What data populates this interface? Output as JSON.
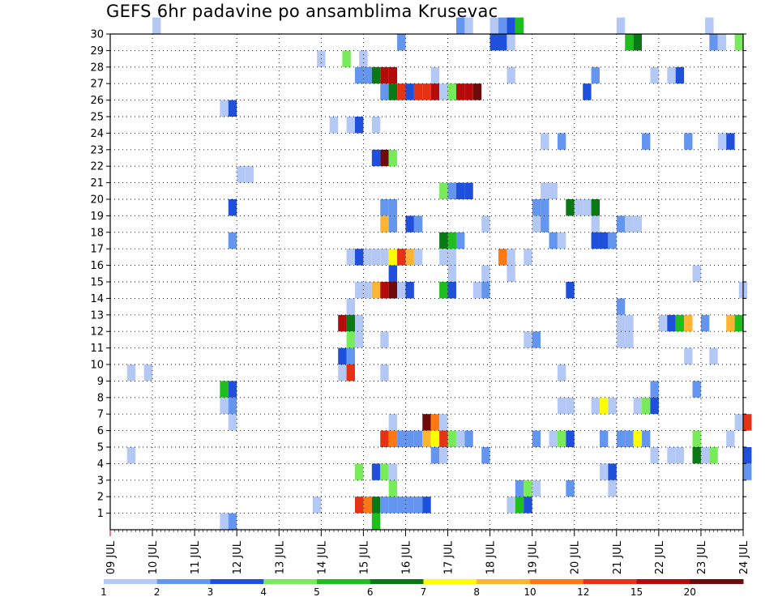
{
  "chart_data": {
    "type": "heatmap",
    "title": "GEFS 6hr padavine po ansamblima Krusevac",
    "xlabel": "",
    "ylabel": "",
    "x_ticks": [
      "09 JUL",
      "10 JUL",
      "11 JUL",
      "12 JUL",
      "13 JUL",
      "14 JUL",
      "15 JUL",
      "16 JUL",
      "17 JUL",
      "18 JUL",
      "19 JUL",
      "20 JUL",
      "21 JUL",
      "22 JUL",
      "23 JUL",
      "24 JUL"
    ],
    "y_ticks": [
      "1",
      "2",
      "3",
      "4",
      "5",
      "6",
      "7",
      "8",
      "9",
      "10",
      "11",
      "12",
      "13",
      "14",
      "15",
      "16",
      "17",
      "18",
      "19",
      "20",
      "21",
      "22",
      "23",
      "24",
      "25",
      "26",
      "27",
      "28",
      "29",
      "30"
    ],
    "grid": true,
    "grid_style": "dotted",
    "colorbar": {
      "position": "bottom",
      "labels": [
        "1",
        "2",
        "3",
        "4",
        "5",
        "6",
        "7",
        "8",
        "10",
        "12",
        "15",
        "20"
      ],
      "colors": [
        "#b4c8f5",
        "#6496f0",
        "#1e50dc",
        "#78eb5a",
        "#1ebe1e",
        "#0a7814",
        "#ffff00",
        "#ffb432",
        "#ff7814",
        "#e63214",
        "#b40a0a",
        "#6e0a0a"
      ]
    },
    "color_scale": [
      "#b4c8f5",
      "#6496f0",
      "#1e50dc",
      "#78eb5a",
      "#1ebe1e",
      "#0a7814",
      "#ffff00",
      "#ffb432",
      "#ff7814",
      "#e63214",
      "#b40a0a",
      "#6e0a0a"
    ],
    "cells_note": "each cell: [time step (6h steps from 09 JUL 00UTC), ensemble member, precipitation class index 0-11]",
    "cells": [
      [
        10,
        30,
        0
      ],
      [
        82,
        30,
        1
      ],
      [
        84,
        30,
        0
      ],
      [
        90,
        30,
        0
      ],
      [
        92,
        30,
        1
      ],
      [
        94,
        30,
        2
      ],
      [
        96,
        30,
        4
      ],
      [
        120,
        30,
        0
      ],
      [
        141,
        30,
        0
      ],
      [
        68,
        29,
        1
      ],
      [
        90,
        29,
        2
      ],
      [
        92,
        29,
        2
      ],
      [
        94,
        29,
        0
      ],
      [
        122,
        29,
        4
      ],
      [
        124,
        29,
        5
      ],
      [
        142,
        29,
        1
      ],
      [
        144,
        29,
        0
      ],
      [
        148,
        29,
        3
      ],
      [
        49,
        28,
        0
      ],
      [
        55,
        28,
        3
      ],
      [
        59,
        28,
        0
      ],
      [
        58,
        27,
        1
      ],
      [
        60,
        27,
        1
      ],
      [
        62,
        27,
        5
      ],
      [
        64,
        27,
        10
      ],
      [
        66,
        27,
        10
      ],
      [
        76,
        27,
        0
      ],
      [
        94,
        27,
        0
      ],
      [
        114,
        27,
        1
      ],
      [
        128,
        27,
        0
      ],
      [
        132,
        27,
        0
      ],
      [
        134,
        27,
        2
      ],
      [
        64,
        26,
        1
      ],
      [
        66,
        26,
        5
      ],
      [
        68,
        26,
        9
      ],
      [
        70,
        26,
        2
      ],
      [
        72,
        26,
        9
      ],
      [
        74,
        26,
        9
      ],
      [
        76,
        26,
        10
      ],
      [
        78,
        26,
        0
      ],
      [
        80,
        26,
        3
      ],
      [
        82,
        26,
        10
      ],
      [
        84,
        26,
        10
      ],
      [
        86,
        26,
        11
      ],
      [
        112,
        26,
        2
      ],
      [
        26,
        25,
        0
      ],
      [
        28,
        25,
        2
      ],
      [
        52,
        24,
        0
      ],
      [
        56,
        24,
        0
      ],
      [
        58,
        24,
        2
      ],
      [
        62,
        24,
        0
      ],
      [
        102,
        23,
        0
      ],
      [
        106,
        23,
        1
      ],
      [
        126,
        23,
        1
      ],
      [
        136,
        23,
        1
      ],
      [
        144,
        23,
        0
      ],
      [
        146,
        23,
        2
      ],
      [
        62,
        22,
        2
      ],
      [
        64,
        22,
        11
      ],
      [
        66,
        22,
        3
      ],
      [
        30,
        21,
        0
      ],
      [
        32,
        21,
        0
      ],
      [
        78,
        20,
        3
      ],
      [
        80,
        20,
        1
      ],
      [
        82,
        20,
        2
      ],
      [
        84,
        20,
        2
      ],
      [
        102,
        20,
        0
      ],
      [
        104,
        20,
        0
      ],
      [
        28,
        19,
        2
      ],
      [
        64,
        19,
        1
      ],
      [
        66,
        19,
        1
      ],
      [
        100,
        19,
        1
      ],
      [
        102,
        19,
        1
      ],
      [
        108,
        19,
        5
      ],
      [
        110,
        19,
        0
      ],
      [
        112,
        19,
        0
      ],
      [
        114,
        19,
        5
      ],
      [
        64,
        18,
        7
      ],
      [
        66,
        18,
        1
      ],
      [
        70,
        18,
        2
      ],
      [
        72,
        18,
        1
      ],
      [
        88,
        18,
        0
      ],
      [
        100,
        18,
        0
      ],
      [
        102,
        18,
        1
      ],
      [
        114,
        18,
        0
      ],
      [
        120,
        18,
        1
      ],
      [
        122,
        18,
        0
      ],
      [
        124,
        18,
        0
      ],
      [
        28,
        17,
        1
      ],
      [
        78,
        17,
        5
      ],
      [
        80,
        17,
        4
      ],
      [
        82,
        17,
        1
      ],
      [
        104,
        17,
        1
      ],
      [
        106,
        17,
        0
      ],
      [
        114,
        17,
        2
      ],
      [
        116,
        17,
        2
      ],
      [
        118,
        17,
        1
      ],
      [
        56,
        16,
        0
      ],
      [
        58,
        16,
        2
      ],
      [
        60,
        16,
        0
      ],
      [
        62,
        16,
        0
      ],
      [
        64,
        16,
        0
      ],
      [
        66,
        16,
        6
      ],
      [
        68,
        16,
        9
      ],
      [
        70,
        16,
        7
      ],
      [
        72,
        16,
        0
      ],
      [
        78,
        16,
        0
      ],
      [
        80,
        16,
        0
      ],
      [
        92,
        16,
        8
      ],
      [
        94,
        16,
        0
      ],
      [
        98,
        16,
        0
      ],
      [
        66,
        15,
        2
      ],
      [
        80,
        15,
        0
      ],
      [
        88,
        15,
        0
      ],
      [
        94,
        15,
        0
      ],
      [
        138,
        15,
        0
      ],
      [
        58,
        14,
        0
      ],
      [
        60,
        14,
        0
      ],
      [
        62,
        14,
        7
      ],
      [
        64,
        14,
        10
      ],
      [
        66,
        14,
        11
      ],
      [
        68,
        14,
        0
      ],
      [
        70,
        14,
        2
      ],
      [
        78,
        14,
        4
      ],
      [
        80,
        14,
        2
      ],
      [
        86,
        14,
        0
      ],
      [
        88,
        14,
        1
      ],
      [
        108,
        14,
        2
      ],
      [
        149,
        14,
        0
      ],
      [
        56,
        13,
        0
      ],
      [
        120,
        13,
        1
      ],
      [
        54,
        12,
        10
      ],
      [
        56,
        12,
        5
      ],
      [
        58,
        12,
        0
      ],
      [
        120,
        12,
        0
      ],
      [
        122,
        12,
        0
      ],
      [
        130,
        12,
        0
      ],
      [
        132,
        12,
        2
      ],
      [
        134,
        12,
        4
      ],
      [
        136,
        12,
        7
      ],
      [
        140,
        12,
        1
      ],
      [
        146,
        12,
        7
      ],
      [
        148,
        12,
        4
      ],
      [
        56,
        11,
        3
      ],
      [
        58,
        11,
        0
      ],
      [
        64,
        11,
        0
      ],
      [
        98,
        11,
        0
      ],
      [
        100,
        11,
        1
      ],
      [
        120,
        11,
        0
      ],
      [
        122,
        11,
        0
      ],
      [
        54,
        10,
        2
      ],
      [
        56,
        10,
        1
      ],
      [
        136,
        10,
        0
      ],
      [
        142,
        10,
        0
      ],
      [
        4,
        9,
        0
      ],
      [
        8,
        9,
        0
      ],
      [
        54,
        9,
        0
      ],
      [
        56,
        9,
        9
      ],
      [
        64,
        9,
        0
      ],
      [
        106,
        9,
        0
      ],
      [
        26,
        8,
        4
      ],
      [
        28,
        8,
        2
      ],
      [
        128,
        8,
        1
      ],
      [
        138,
        8,
        1
      ],
      [
        26,
        7,
        0
      ],
      [
        28,
        7,
        1
      ],
      [
        106,
        7,
        0
      ],
      [
        108,
        7,
        0
      ],
      [
        114,
        7,
        0
      ],
      [
        116,
        7,
        6
      ],
      [
        118,
        7,
        0
      ],
      [
        124,
        7,
        0
      ],
      [
        126,
        7,
        3
      ],
      [
        128,
        7,
        2
      ],
      [
        28,
        6,
        0
      ],
      [
        66,
        6,
        0
      ],
      [
        74,
        6,
        11
      ],
      [
        76,
        6,
        8
      ],
      [
        78,
        6,
        0
      ],
      [
        148,
        6,
        0
      ],
      [
        150,
        6,
        9
      ],
      [
        64,
        5,
        9
      ],
      [
        66,
        5,
        8
      ],
      [
        68,
        5,
        1
      ],
      [
        70,
        5,
        1
      ],
      [
        72,
        5,
        1
      ],
      [
        74,
        5,
        7
      ],
      [
        76,
        5,
        6
      ],
      [
        78,
        5,
        9
      ],
      [
        80,
        5,
        3
      ],
      [
        82,
        5,
        0
      ],
      [
        84,
        5,
        1
      ],
      [
        100,
        5,
        1
      ],
      [
        104,
        5,
        0
      ],
      [
        106,
        5,
        3
      ],
      [
        108,
        5,
        2
      ],
      [
        116,
        5,
        1
      ],
      [
        120,
        5,
        1
      ],
      [
        122,
        5,
        1
      ],
      [
        124,
        5,
        6
      ],
      [
        126,
        5,
        1
      ],
      [
        138,
        5,
        3
      ],
      [
        146,
        5,
        0
      ],
      [
        4,
        4,
        0
      ],
      [
        76,
        4,
        1
      ],
      [
        78,
        4,
        0
      ],
      [
        88,
        4,
        1
      ],
      [
        128,
        4,
        0
      ],
      [
        132,
        4,
        0
      ],
      [
        134,
        4,
        0
      ],
      [
        138,
        4,
        5
      ],
      [
        140,
        4,
        0
      ],
      [
        142,
        4,
        3
      ],
      [
        150,
        4,
        2
      ],
      [
        58,
        3,
        3
      ],
      [
        62,
        3,
        2
      ],
      [
        64,
        3,
        3
      ],
      [
        66,
        3,
        0
      ],
      [
        116,
        3,
        0
      ],
      [
        118,
        3,
        2
      ],
      [
        150,
        3,
        1
      ],
      [
        66,
        2,
        3
      ],
      [
        96,
        2,
        1
      ],
      [
        98,
        2,
        3
      ],
      [
        100,
        2,
        0
      ],
      [
        108,
        2,
        1
      ],
      [
        118,
        2,
        0
      ],
      [
        48,
        1,
        0
      ],
      [
        58,
        1,
        9
      ],
      [
        60,
        1,
        8
      ],
      [
        62,
        1,
        5
      ],
      [
        64,
        1,
        1
      ],
      [
        66,
        1,
        1
      ],
      [
        68,
        1,
        1
      ],
      [
        70,
        1,
        1
      ],
      [
        72,
        1,
        1
      ],
      [
        74,
        1,
        2
      ],
      [
        94,
        1,
        0
      ],
      [
        96,
        1,
        4
      ],
      [
        98,
        1,
        2
      ],
      [
        26,
        0,
        0
      ],
      [
        28,
        0,
        1
      ],
      [
        62,
        0,
        4
      ]
    ]
  }
}
